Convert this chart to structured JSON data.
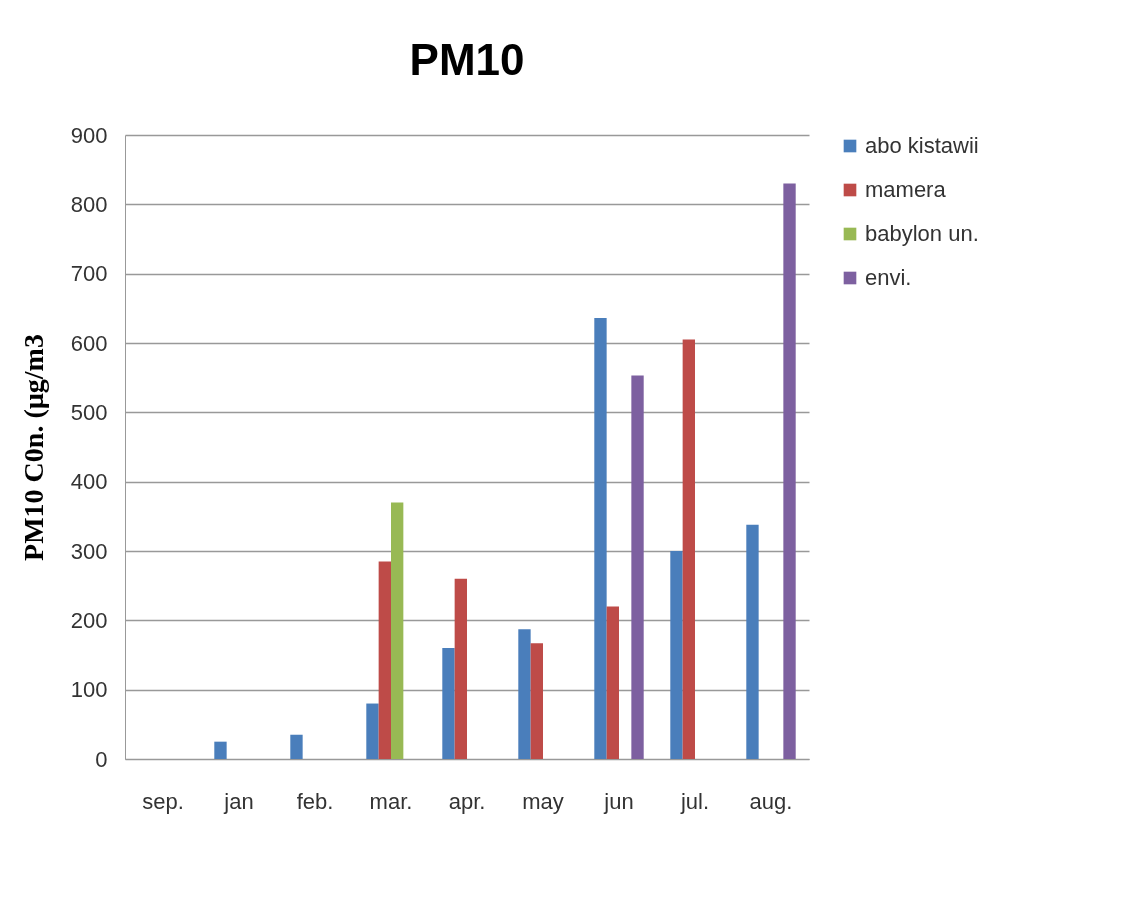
{
  "chart_data": {
    "type": "bar",
    "title": "PM10",
    "ylabel": "PM10 C0n. (µg/m3",
    "categories": [
      "sep.",
      "jan",
      "feb.",
      "mar.",
      "apr.",
      "may",
      "jun",
      "jul.",
      "aug."
    ],
    "series": [
      {
        "name": "abo kistawii",
        "color": "#4a7ebb",
        "values": [
          null,
          25,
          35,
          80,
          160,
          187,
          636,
          300,
          338
        ]
      },
      {
        "name": "mamera",
        "color": "#be4b48",
        "values": [
          null,
          null,
          null,
          285,
          260,
          167,
          220,
          605,
          null
        ]
      },
      {
        "name": "babylon un.",
        "color": "#98b954",
        "values": [
          null,
          null,
          null,
          370,
          null,
          null,
          null,
          null,
          null
        ]
      },
      {
        "name": "envi.",
        "color": "#7d60a0",
        "values": [
          null,
          null,
          null,
          null,
          null,
          null,
          553,
          null,
          830
        ]
      }
    ],
    "ylim": [
      0,
      900
    ],
    "yticks": [
      0,
      100,
      200,
      300,
      400,
      500,
      600,
      700,
      800,
      900
    ],
    "grid": "y",
    "legend": "right"
  }
}
